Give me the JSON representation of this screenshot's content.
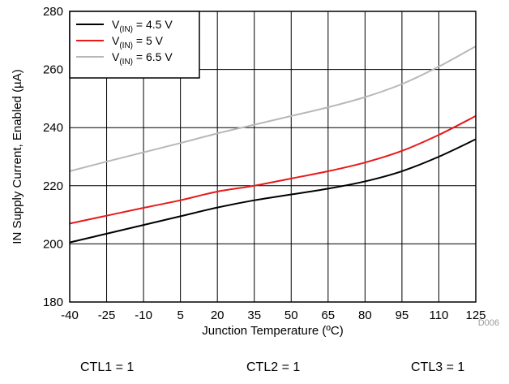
{
  "chart_data": {
    "type": "line",
    "xlabel": "Junction Temperature (ºC)",
    "ylabel": "IN Supply Current, Enabled (µA)",
    "xlim": [
      -40,
      125
    ],
    "ylim": [
      180,
      280
    ],
    "x_ticks": [
      -40,
      -25,
      -10,
      5,
      20,
      35,
      50,
      65,
      80,
      95,
      110,
      125
    ],
    "y_ticks": [
      180,
      200,
      220,
      240,
      260,
      280
    ],
    "grid": true,
    "legend_position": "top-left",
    "x": [
      -40,
      -25,
      -10,
      5,
      20,
      35,
      50,
      65,
      80,
      95,
      110,
      125
    ],
    "series": [
      {
        "legend_main": "V",
        "legend_sub": "(IN)",
        "legend_rest": " = 4.5 V",
        "color": "#000000",
        "values": [
          200.5,
          203.5,
          206.5,
          209.5,
          212.5,
          215,
          217,
          219,
          221.5,
          225,
          230,
          236
        ]
      },
      {
        "legend_main": "V",
        "legend_sub": "(IN)",
        "legend_rest": " = 5 V",
        "color": "#e8191a",
        "values": [
          207,
          209.7,
          212.4,
          215,
          218,
          220,
          222.5,
          225,
          228,
          232,
          237.5,
          244
        ]
      },
      {
        "legend_main": "V",
        "legend_sub": "(IN)",
        "legend_rest": " = 6.5 V",
        "color": "#b8b8b8",
        "values": [
          225,
          228.3,
          231.5,
          234.7,
          238,
          241,
          244,
          247,
          250.5,
          255,
          261,
          268
        ]
      }
    ],
    "figure_id": "D006"
  },
  "footer": {
    "ctl1": "CTL1 = 1",
    "ctl2": "CTL2 = 1",
    "ctl3": "CTL3 = 1"
  }
}
